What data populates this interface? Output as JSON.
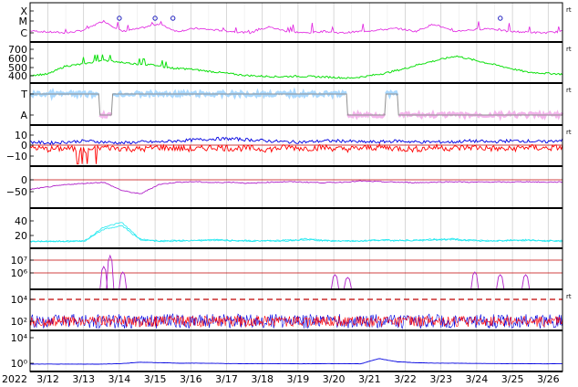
{
  "chart_data": {
    "type": "line",
    "year_label": "2022",
    "x_ticks": [
      "3/12",
      "3/13",
      "3/14",
      "3/15",
      "3/16",
      "3/17",
      "3/18",
      "3/19",
      "3/20",
      "3/21",
      "3/22",
      "3/23",
      "3/24",
      "3/25",
      "3/26"
    ],
    "x_range": [
      "3/11",
      "3/26 12:00"
    ],
    "colors": {
      "magenta": "#e020e0",
      "green": "#10e010",
      "lightblue": "#a8d8ff",
      "pink": "#f4b4ec",
      "red": "#ff0000",
      "blue": "#0000e0",
      "purple": "#b020c8",
      "cyan": "#20e8f0",
      "gray": "#909090",
      "darkred": "#c00000"
    },
    "panels": [
      {
        "id": "flare",
        "ticks": [
          "X",
          "M",
          "C"
        ],
        "right_note": "rt",
        "series": [
          {
            "color": "magenta",
            "values": [
              0.22,
              0.18,
              0.15,
              0.25,
              0.55,
              0.2,
              0.3,
              0.45,
              0.2,
              0.3,
              0.25,
              0.2,
              0.15,
              0.35,
              0.2,
              0.15,
              0.2,
              0.15,
              0.2,
              0.25,
              0.3,
              0.2,
              0.45,
              0.2,
              0.25,
              0.3,
              0.2,
              0.18,
              0.15,
              0.2
            ]
          }
        ],
        "markers": [
          "3/14",
          "3/15",
          "3/15 12:00",
          "3/24 16:00"
        ]
      },
      {
        "id": "wind-speed",
        "ticks": [
          "700",
          "600",
          "500",
          "400"
        ],
        "right_note": "rt",
        "series": [
          {
            "color": "green",
            "values": [
              410,
              420,
              500,
              520,
              560,
              540,
              520,
              510,
              480,
              470,
              450,
              430,
              410,
              400,
              395,
              400,
              395,
              390,
              380,
              400,
              430,
              470,
              520,
              560,
              600,
              560,
              520,
              480,
              440,
              430,
              420
            ]
          }
        ]
      },
      {
        "id": "sector",
        "ticks": [
          "T",
          "A"
        ],
        "right_note": "rt",
        "series": [
          {
            "color": "lightblue"
          },
          {
            "color": "pink"
          }
        ]
      },
      {
        "id": "imf",
        "ticks": [
          "10",
          "0",
          "−10"
        ],
        "right_note": "rt",
        "series": [
          {
            "color": "blue",
            "values": [
              3,
              2,
              3,
              4,
              3,
              2,
              3,
              3,
              4,
              5,
              6,
              6,
              5,
              4,
              3,
              3,
              4,
              4,
              3,
              3,
              4,
              3,
              3,
              3,
              4,
              3,
              4,
              4,
              3,
              5
            ]
          },
          {
            "color": "red",
            "values": [
              -2,
              -4,
              -3,
              -5,
              -2,
              -3,
              -4,
              -2,
              -3,
              -4,
              -2,
              -3,
              -3,
              -4,
              -2,
              -3,
              -2,
              -4,
              -3,
              -2,
              -3,
              -4,
              -2,
              -3,
              -2,
              -3,
              -4,
              -2,
              -3,
              -2
            ]
          }
        ]
      },
      {
        "id": "angle",
        "ticks": [
          "0",
          "−50"
        ],
        "right_note": "",
        "series": [
          {
            "color": "purple",
            "values": [
              -40,
              -30,
              -20,
              -15,
              -10,
              -45,
              -60,
              -20,
              -10,
              -8,
              -12,
              -10,
              -15,
              -10,
              -8,
              -10,
              -12,
              -10,
              -5,
              -8,
              -10,
              -12,
              -10,
              -8,
              -10,
              -9,
              -10,
              -8,
              -10,
              -9
            ]
          }
        ]
      },
      {
        "id": "density",
        "ticks": [
          "40",
          "20"
        ],
        "right_note": "",
        "series": [
          {
            "color": "cyan",
            "values": [
              4,
              4,
              4,
              5,
              35,
              45,
              8,
              5,
              5,
              6,
              7,
              6,
              5,
              5,
              6,
              9,
              6,
              5,
              5,
              7,
              6,
              6,
              8,
              9,
              6,
              5,
              6,
              7,
              5,
              5
            ]
          }
        ]
      },
      {
        "id": "electrons",
        "ticks": [
          "10⁷",
          "10⁶"
        ],
        "right_note": "",
        "series": [
          {
            "color": "purple"
          }
        ]
      },
      {
        "id": "protons",
        "ticks": [
          "10⁴",
          "10²"
        ],
        "right_note": "rt",
        "series": [
          {
            "color": "blue"
          },
          {
            "color": "red"
          }
        ]
      },
      {
        "id": "xray",
        "ticks": [
          "10⁴",
          "10⁰"
        ],
        "right_note": "",
        "series": [
          {
            "color": "blue",
            "values": [
              0,
              0,
              0,
              0,
              0,
              0.1,
              0.4,
              0.3,
              0.2,
              0.2,
              0.15,
              0.1,
              0.1,
              0.1,
              0.1,
              0.05,
              0.1,
              0.1,
              0.05,
              1.2,
              0.5,
              0.3,
              0.2,
              0.2,
              0.15,
              0.1,
              0.1,
              0.1,
              0.05,
              0.1
            ]
          }
        ]
      }
    ]
  }
}
